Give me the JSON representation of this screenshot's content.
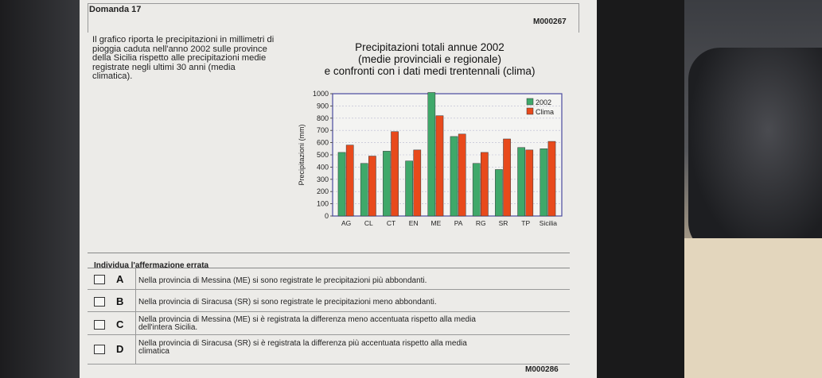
{
  "question": {
    "title": "Domanda 17",
    "code_top": "M000267",
    "code_bottom": "M000286",
    "description": "Il grafico riporta le precipitazioni in millimetri di pioggia caduta nell'anno 2002 sulle province della Sicilia rispetto alle precipitazioni medie registrate negli ultimi 30 anni (media climatica).",
    "prompt": "Individua l'affermazione errata"
  },
  "chart_title": {
    "line1": "Precipitazioni totali annue 2002",
    "line2": "(medie provinciali e regionale)",
    "line3": "e confronti con i dati medi trentennali (clima)"
  },
  "options": [
    {
      "letter": "A",
      "text": "Nella provincia di Messina (ME) si sono registrate le precipitazioni più abbondanti."
    },
    {
      "letter": "B",
      "text": "Nella provincia di Siracusa (SR) si sono registrate le precipitazioni meno abbondanti."
    },
    {
      "letter": "C",
      "text": "Nella provincia di Messina (ME) si è registrata la differenza meno accentuata rispetto alla media dell'intera Sicilia."
    },
    {
      "letter": "D",
      "text": "Nella provincia di Siracusa (SR) si è registrata la differenza più accentuata rispetto alla media climatica"
    }
  ],
  "chart_data": {
    "type": "bar",
    "title": "",
    "xlabel": "",
    "ylabel": "Precipitazioni (mm)",
    "ylim": [
      0,
      1000
    ],
    "yticks": [
      0,
      100,
      200,
      300,
      400,
      500,
      600,
      700,
      800,
      900,
      1000
    ],
    "grid": true,
    "legend_position": "top-right",
    "categories": [
      "AG",
      "CL",
      "CT",
      "EN",
      "ME",
      "PA",
      "RG",
      "SR",
      "TP",
      "Sicilia"
    ],
    "series": [
      {
        "name": "2002",
        "color": "#3fa86a",
        "values": [
          520,
          430,
          530,
          450,
          1010,
          650,
          430,
          380,
          560,
          550
        ]
      },
      {
        "name": "Clima",
        "color": "#e84a1c",
        "values": [
          580,
          490,
          690,
          540,
          820,
          670,
          520,
          630,
          540,
          610
        ]
      }
    ]
  }
}
